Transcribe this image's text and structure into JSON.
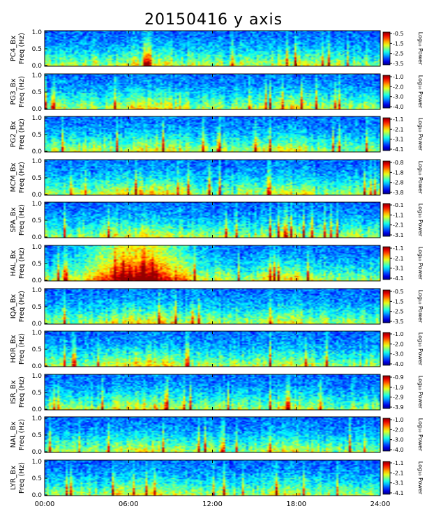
{
  "title": "20150416 y axis",
  "chart_data": {
    "type": "heatmap",
    "title": "20150416 y axis",
    "x_axis": {
      "range": [
        "00:00",
        "24:00"
      ],
      "ticks": [
        "00:00",
        "06:00",
        "12:00",
        "18:00",
        "24:00"
      ]
    },
    "y_ticks": [
      "0.0",
      "0.5",
      "1.0"
    ],
    "colorbar_label": "Log₁₀ Power",
    "panels": [
      {
        "station": "PC4",
        "ylabel1": "PC4_Bx",
        "ylabel2": "Freq (Hz)",
        "cb_ticks": [
          "-0.5",
          "-1.5",
          "-2.5",
          "-3.5"
        ],
        "activity": 0.35
      },
      {
        "station": "PG3",
        "ylabel1": "PG3_Bx",
        "ylabel2": "Freq (Hz)",
        "cb_ticks": [
          "-1.0",
          "-2.0",
          "-3.0",
          "-4.0"
        ],
        "activity": 0.45
      },
      {
        "station": "PG2",
        "ylabel1": "PG2_Bx",
        "ylabel2": "Freq (Hz)",
        "cb_ticks": [
          "-1.1",
          "-2.1",
          "-3.1",
          "-4.1"
        ],
        "activity": 0.45
      },
      {
        "station": "MCM",
        "ylabel1": "MCM_Bx",
        "ylabel2": "Freq (Hz)",
        "cb_ticks": [
          "-0.8",
          "-1.8",
          "-2.8",
          "-3.8"
        ],
        "activity": 0.5
      },
      {
        "station": "SPA",
        "ylabel1": "SPA_Bx",
        "ylabel2": "Freq (Hz)",
        "cb_ticks": [
          "-0.1",
          "-1.1",
          "-2.1",
          "-3.1"
        ],
        "activity": 0.3
      },
      {
        "station": "HAL",
        "ylabel1": "HAL_Bx",
        "ylabel2": "Freq (Hz)",
        "cb_ticks": [
          "-1.1",
          "-2.1",
          "-3.1",
          "-4.1"
        ],
        "activity": 0.8
      },
      {
        "station": "IQA",
        "ylabel1": "IQA_Bx",
        "ylabel2": "Freq (Hz)",
        "cb_ticks": [
          "-0.5",
          "-1.5",
          "-2.5",
          "-3.5"
        ],
        "activity": 0.45
      },
      {
        "station": "HOR",
        "ylabel1": "HOR_Bx",
        "ylabel2": "Freq (Hz)",
        "cb_ticks": [
          "-1.0",
          "-2.0",
          "-3.0",
          "-4.0"
        ],
        "activity": 0.45
      },
      {
        "station": "ISR",
        "ylabel1": "ISR_Bx",
        "ylabel2": "Freq (Hz)",
        "cb_ticks": [
          "-0.9",
          "-1.9",
          "-2.9",
          "-3.9"
        ],
        "activity": 0.4
      },
      {
        "station": "NAL",
        "ylabel1": "NAL_Bx",
        "ylabel2": "Freq (Hz)",
        "cb_ticks": [
          "-1.0",
          "-2.0",
          "-3.0",
          "-4.0"
        ],
        "activity": 0.4
      },
      {
        "station": "LYR",
        "ylabel1": "LYR_Bx",
        "ylabel2": "Freq (Hz)",
        "cb_ticks": [
          "-1.1",
          "-2.1",
          "-3.1",
          "-4.1"
        ],
        "activity": 0.4
      }
    ]
  }
}
